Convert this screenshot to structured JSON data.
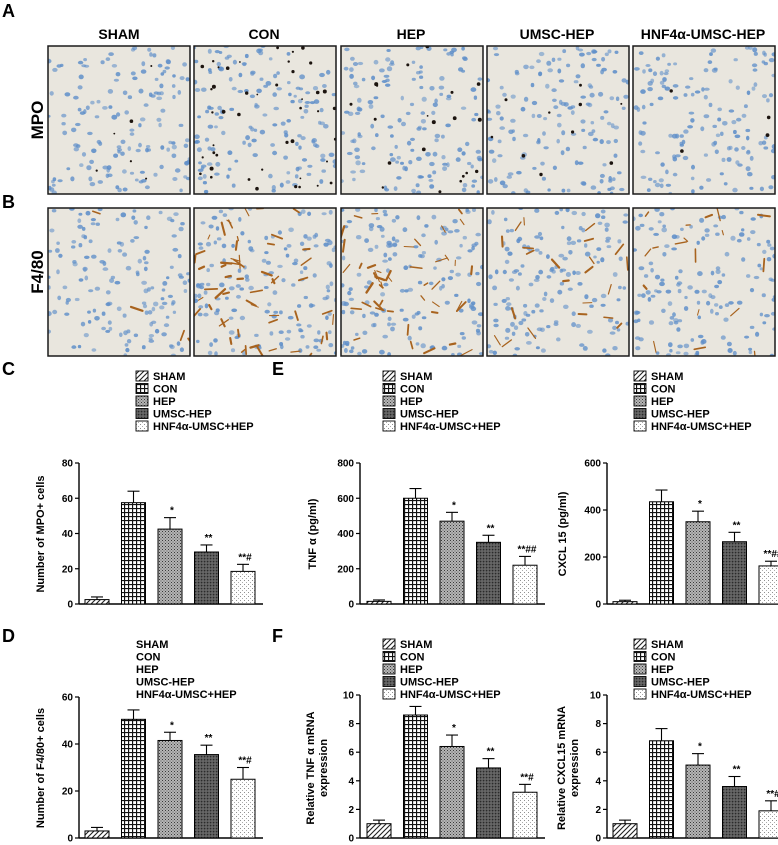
{
  "panel_letters": [
    "A",
    "B",
    "C",
    "D",
    "E",
    "F"
  ],
  "micrographs": {
    "columns": [
      "SHAM",
      "CON",
      "HEP",
      "UMSC-HEP",
      "HNF4α-UMSC-HEP"
    ],
    "rows": [
      "MPO",
      "F4/80"
    ]
  },
  "colors": {
    "nuclei": "#5f8fc9",
    "tissue_bg": "#e9e6de",
    "mpo_stain": "#1c140f",
    "f480_stain": "#a8631e"
  },
  "chart_data": [
    {
      "id": "C",
      "type": "bar",
      "categories": [
        "SHAM",
        "CON",
        "HEP",
        "UMSC-HEP",
        "HNF4α-UMSC+HEP"
      ],
      "values": [
        2.5,
        57.5,
        42.5,
        29.5,
        18.5
      ],
      "errors": [
        1.5,
        6.5,
        6.5,
        4.0,
        4.0
      ],
      "sig": [
        "",
        "",
        "*",
        "**",
        "**#"
      ],
      "ylabel": "Number of MPO+ cells",
      "ylim": [
        0,
        80
      ],
      "yticks": [
        0,
        20,
        40,
        60,
        80
      ],
      "legend": [
        "SHAM",
        "CON",
        "HEP",
        "UMSC-HEP",
        "HNF4α-UMSC+HEP"
      ],
      "legend_swatches": true
    },
    {
      "id": "E1",
      "type": "bar",
      "categories": [
        "SHAM",
        "CON",
        "HEP",
        "UMSC-HEP",
        "HNF4α-UMSC+HEP"
      ],
      "values": [
        15,
        600,
        470,
        350,
        220
      ],
      "errors": [
        8,
        55,
        50,
        40,
        50
      ],
      "sig": [
        "",
        "",
        "*",
        "**",
        "**##"
      ],
      "ylabel": "TNF α (pg/ml)",
      "ylim": [
        0,
        800
      ],
      "yticks": [
        0,
        200,
        400,
        600,
        800
      ],
      "legend": [
        "SHAM",
        "CON",
        "HEP",
        "UMSC-HEP",
        "HNF4α-UMSC+HEP"
      ],
      "legend_swatches": true
    },
    {
      "id": "E2",
      "type": "bar",
      "categories": [
        "SHAM",
        "CON",
        "HEP",
        "UMSC-HEP",
        "HNF4α-UMSC+HEP"
      ],
      "values": [
        10,
        435,
        350,
        265,
        162
      ],
      "errors": [
        6,
        50,
        45,
        40,
        20
      ],
      "sig": [
        "",
        "",
        "*",
        "**",
        "**##"
      ],
      "ylabel": "CXCL 15 (pg/ml)",
      "ylim": [
        0,
        600
      ],
      "yticks": [
        0,
        200,
        400,
        600
      ],
      "legend": [
        "SHAM",
        "CON",
        "HEP",
        "UMSC-HEP",
        "HNF4α-UMSC+HEP"
      ],
      "legend_swatches": true
    },
    {
      "id": "D",
      "type": "bar",
      "categories": [
        "SHAM",
        "CON",
        "HEP",
        "UMSC-HEP",
        "HNF4α-UMSC+HEP"
      ],
      "values": [
        3,
        50.5,
        41.5,
        35.5,
        25
      ],
      "errors": [
        1.5,
        4.0,
        3.5,
        4.0,
        5.0
      ],
      "sig": [
        "",
        "",
        "*",
        "**",
        "**#"
      ],
      "ylabel": "Number of F4/80+ cells",
      "ylim": [
        0,
        60
      ],
      "yticks": [
        0,
        20,
        40,
        60
      ],
      "legend": [
        "SHAM",
        "CON",
        "HEP",
        "UMSC-HEP",
        "HNF4α-UMSC+HEP"
      ],
      "legend_swatches": false
    },
    {
      "id": "F1",
      "type": "bar",
      "categories": [
        "SHAM",
        "CON",
        "HEP",
        "UMSC-HEP",
        "HNF4α-UMSC+HEP"
      ],
      "values": [
        1.0,
        8.6,
        6.4,
        4.9,
        3.2
      ],
      "errors": [
        0.25,
        0.6,
        0.8,
        0.65,
        0.55
      ],
      "sig": [
        "",
        "",
        "*",
        "**",
        "**#"
      ],
      "ylabel": [
        "Relative TNF α mRNA",
        "expression"
      ],
      "ylim": [
        0,
        10
      ],
      "yticks": [
        0,
        2,
        4,
        6,
        8,
        10
      ],
      "legend": [
        "SHAM",
        "CON",
        "HEP",
        "UMSC-HEP",
        "HNF4α-UMSC+HEP"
      ],
      "legend_swatches": true
    },
    {
      "id": "F2",
      "type": "bar",
      "categories": [
        "SHAM",
        "CON",
        "HEP",
        "UMSC-HEP",
        "HNF4α-UMSC+HEP"
      ],
      "values": [
        1.0,
        6.8,
        5.1,
        3.6,
        1.9
      ],
      "errors": [
        0.25,
        0.85,
        0.8,
        0.7,
        0.7
      ],
      "sig": [
        "",
        "",
        "*",
        "**",
        "**#"
      ],
      "ylabel": [
        "Relative CXCL15 mRNA",
        "expression"
      ],
      "ylim": [
        0,
        10
      ],
      "yticks": [
        0,
        2,
        4,
        6,
        8,
        10
      ],
      "legend": [
        "SHAM",
        "CON",
        "HEP",
        "UMSC-HEP",
        "HNF4α-UMSC+HEP"
      ],
      "legend_swatches": true
    }
  ]
}
